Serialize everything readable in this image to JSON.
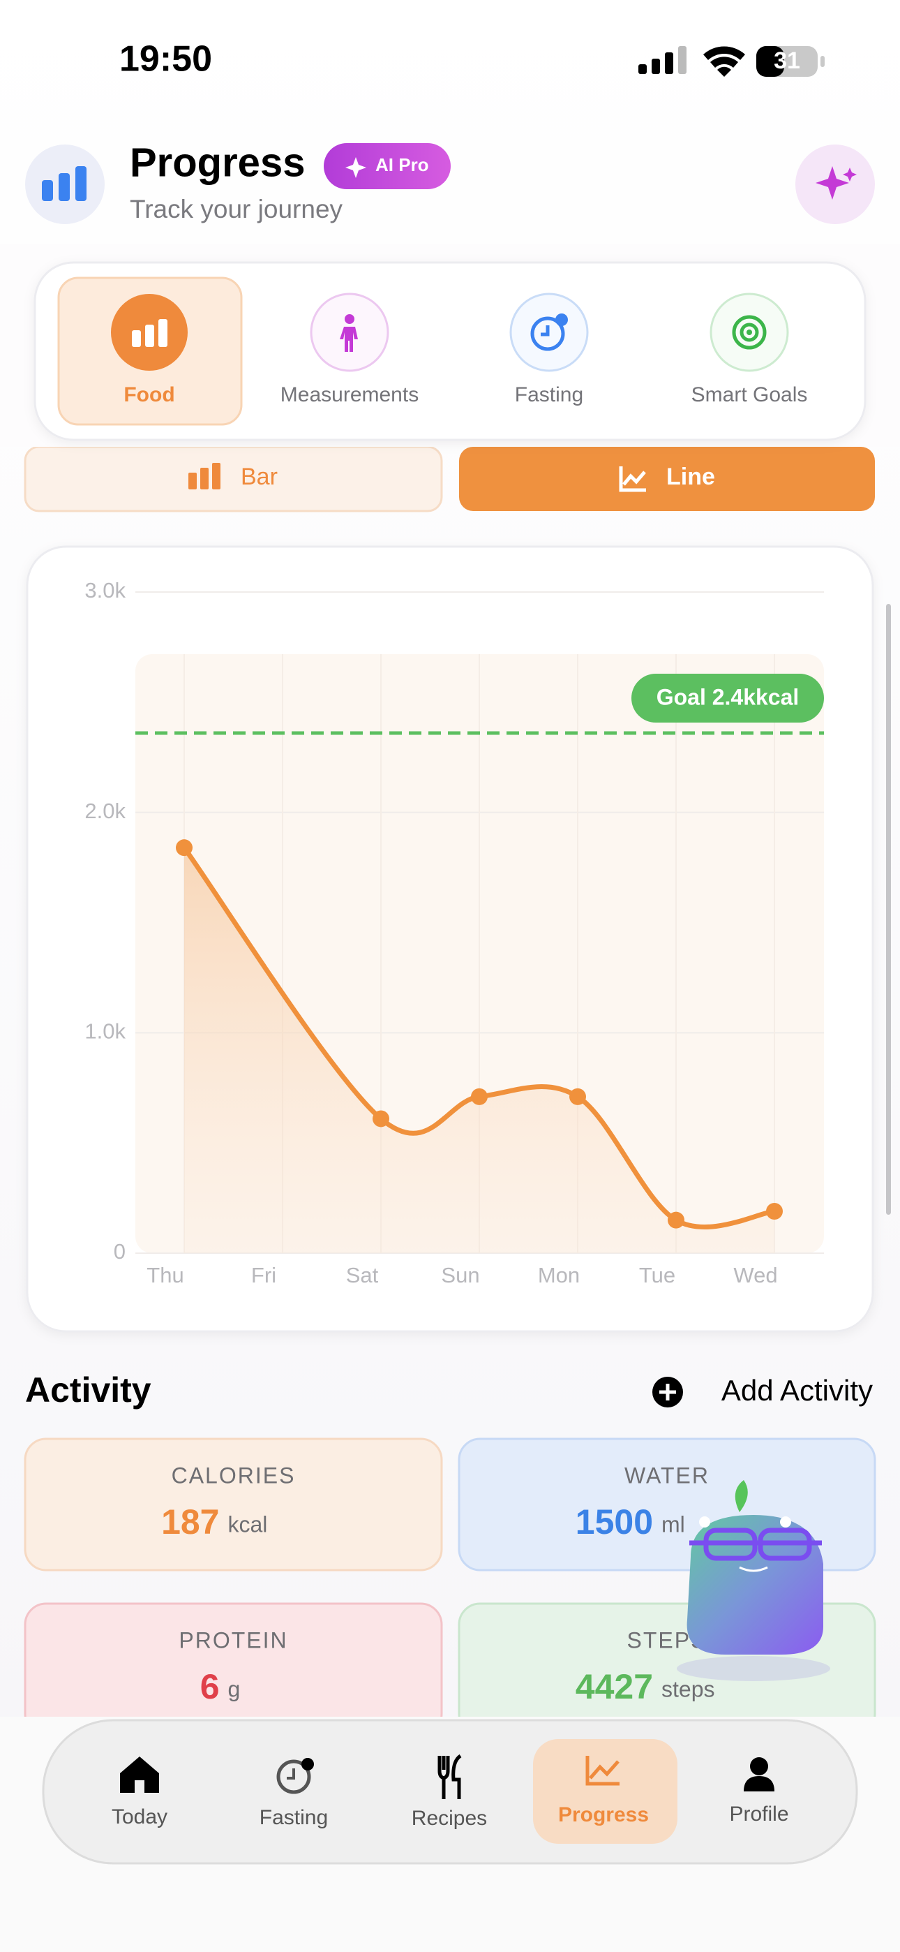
{
  "status_bar": {
    "time": "19:50",
    "battery": "31"
  },
  "header": {
    "title": "Progress",
    "badge": "AI Pro",
    "subtitle": "Track your journey"
  },
  "tabs": [
    "Food",
    "Measurements",
    "Fasting",
    "Smart Goals"
  ],
  "chart_toggle": [
    "Bar",
    "Line"
  ],
  "chart_data": {
    "type": "line",
    "categories": [
      "Thu",
      "Fri",
      "Sat",
      "Sun",
      "Mon",
      "Tue",
      "Wed"
    ],
    "series": [
      {
        "color": "#f0913c",
        "values": [
          1840,
          null,
          610,
          710,
          710,
          150,
          190
        ]
      }
    ],
    "ylim": [
      0,
      3000
    ],
    "yticks": [
      0,
      {
        "value": 1000,
        "label": "1.0k"
      },
      {
        "value": 2000,
        "label": "2.0k"
      },
      {
        "value": 3000,
        "label": "3.0k"
      }
    ],
    "goal": {
      "value": 2360,
      "label": "Goal 2.4kkcal",
      "color": "#5cbf60"
    }
  },
  "activity": {
    "title": "Activity",
    "action": "Add Activity",
    "cards": [
      {
        "label": "CALORIES",
        "value": 187,
        "unit": "kcal"
      },
      {
        "label": "WATER",
        "value": 1500,
        "unit": "ml"
      },
      {
        "label": "PROTEIN",
        "value": 6,
        "unit": "g"
      },
      {
        "label": "STEPS",
        "value": 4427,
        "unit": "steps"
      }
    ]
  },
  "nav": [
    "Today",
    "Fasting",
    "Recipes",
    "Progress",
    "Profile"
  ]
}
